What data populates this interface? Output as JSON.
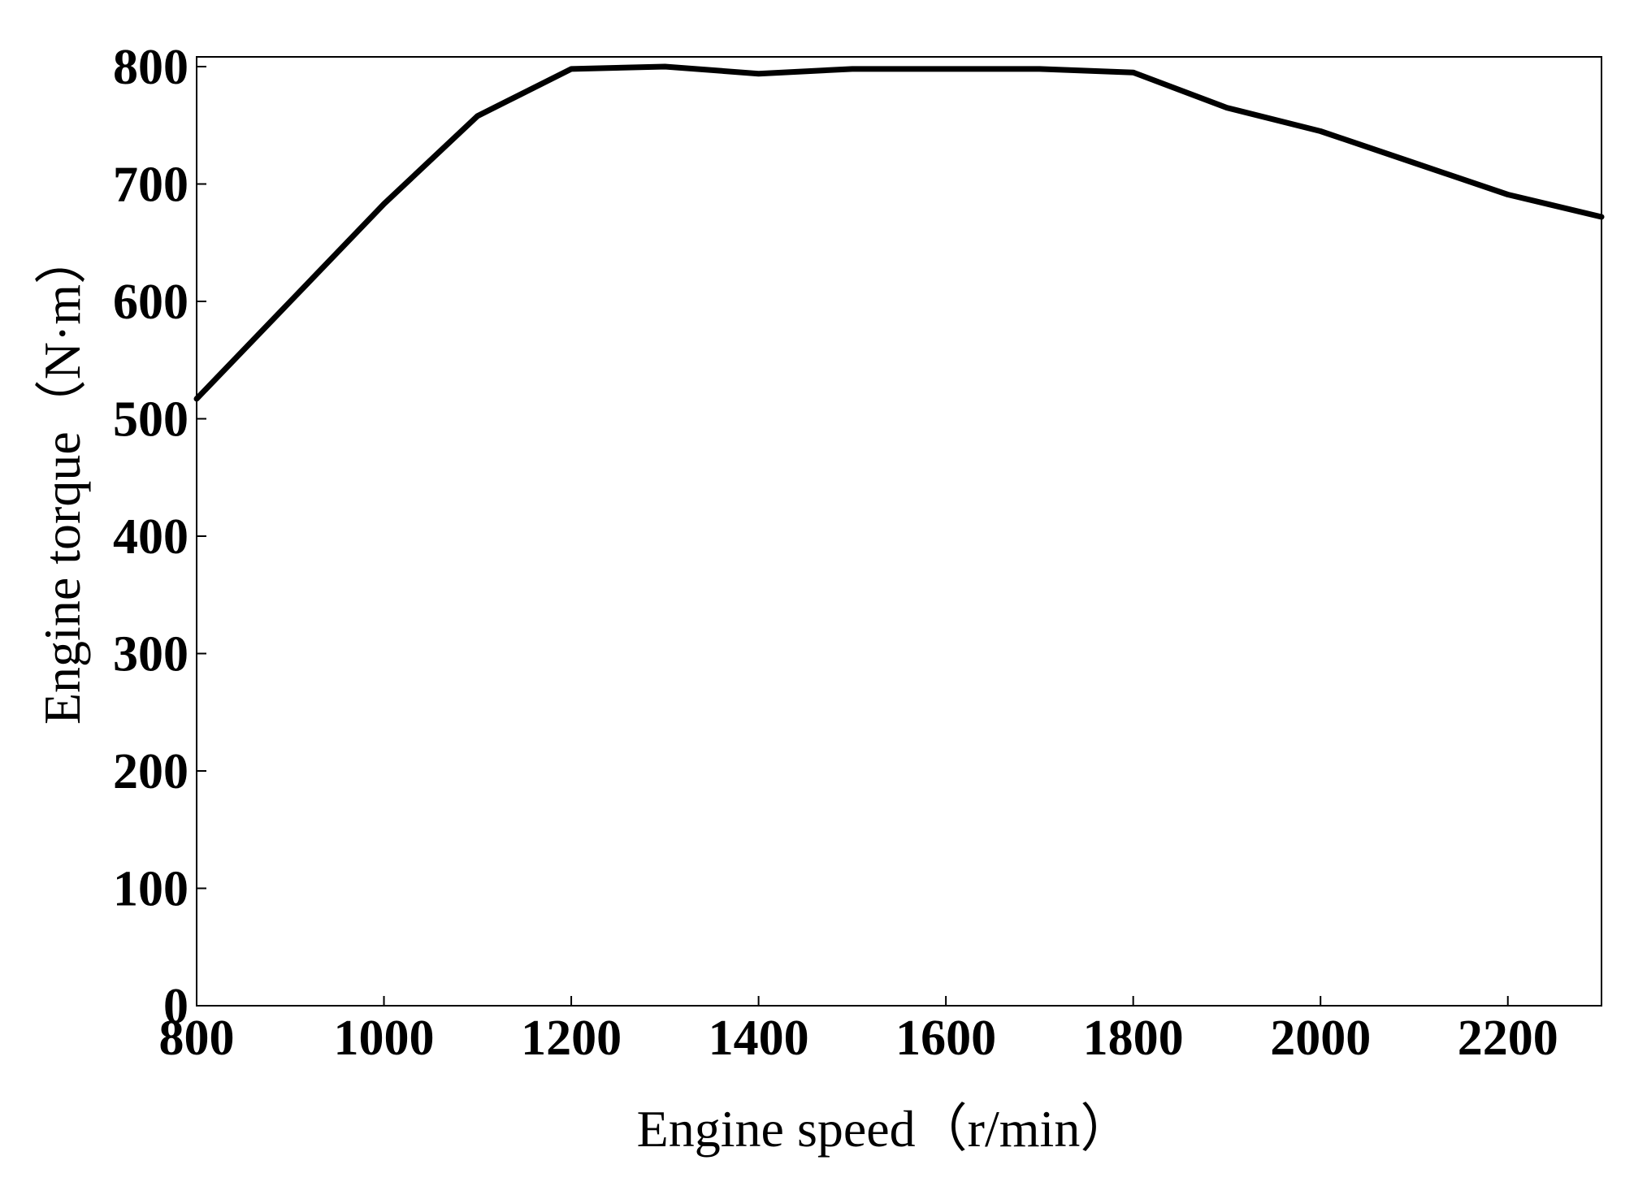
{
  "chart_data": {
    "type": "line",
    "title": "",
    "xlabel": "Engine speed（r/min）",
    "ylabel": "Engine torque（N·m）",
    "xlim": [
      800,
      2300
    ],
    "ylim": [
      0,
      810
    ],
    "xticks": [
      800,
      1000,
      1200,
      1400,
      1600,
      1800,
      2000,
      2200
    ],
    "yticks": [
      0,
      100,
      200,
      300,
      400,
      500,
      600,
      700,
      800
    ],
    "grid": false,
    "legend": "none",
    "colors": {
      "line": "#000000",
      "frame": "#000000",
      "background": "#ffffff"
    },
    "series": [
      {
        "x": [
          800,
          900,
          1000,
          1100,
          1200,
          1300,
          1400,
          1500,
          1600,
          1700,
          1800,
          1900,
          2000,
          2100,
          2200,
          2300
        ],
        "y": [
          517,
          600,
          683,
          758,
          798,
          800,
          794,
          798,
          798,
          798,
          795,
          765,
          745,
          718,
          691,
          672
        ]
      }
    ]
  }
}
